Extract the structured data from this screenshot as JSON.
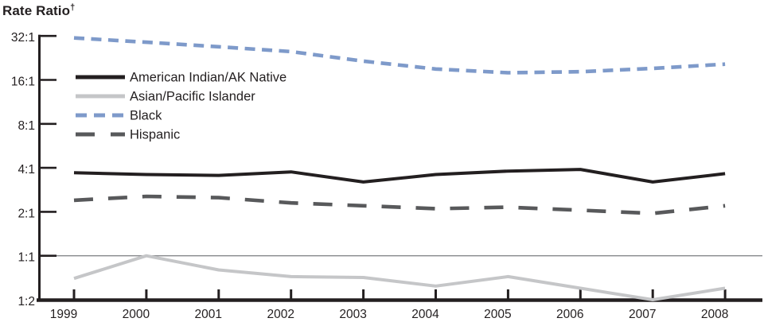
{
  "title": {
    "text": "Rate Ratio",
    "superscript": "†"
  },
  "chart_data": {
    "type": "line",
    "x": [
      1999,
      2000,
      2001,
      2002,
      2003,
      2004,
      2005,
      2006,
      2007,
      2008
    ],
    "x_tick_labels": [
      "1999",
      "2000",
      "2001",
      "2002",
      "2003",
      "2004",
      "2005",
      "2006",
      "2007",
      "2008"
    ],
    "series": [
      {
        "name": "American Indian/AK Native",
        "color": "#231f20",
        "style": "solid",
        "values": [
          3.7,
          3.6,
          3.55,
          3.75,
          3.2,
          3.6,
          3.8,
          3.9,
          3.2,
          3.65
        ]
      },
      {
        "name": "Asian/Pacific Islander",
        "color": "#c5c6c8",
        "style": "solid",
        "values": [
          0.7,
          1.0,
          0.8,
          0.72,
          0.71,
          0.62,
          0.72,
          0.6,
          0.5,
          0.6
        ]
      },
      {
        "name": "Black",
        "color": "#7e9aca",
        "style": "dashed",
        "values": [
          31,
          29,
          27,
          25,
          21.5,
          19,
          17.9,
          18.2,
          19.2,
          20.5
        ]
      },
      {
        "name": "Hispanic",
        "color": "#58595b",
        "style": "long-dashed",
        "values": [
          2.4,
          2.55,
          2.5,
          2.3,
          2.2,
          2.1,
          2.15,
          2.05,
          1.95,
          2.2
        ]
      }
    ],
    "ylabel": "Rate Ratio",
    "y_axis": {
      "scale": "log2",
      "tick_values": [
        32,
        16,
        8,
        4,
        2,
        1,
        0.5
      ],
      "tick_labels": [
        "32:1",
        "16:1",
        "8:1",
        "4:1",
        "2:1",
        "1:1",
        "1:2"
      ],
      "range": [
        0.5,
        32
      ]
    },
    "reference_line_value": 1,
    "reference_line_color": "#87898c",
    "axis_color": "#231f20",
    "grid": false,
    "legend_position": "upper-left-inside"
  }
}
